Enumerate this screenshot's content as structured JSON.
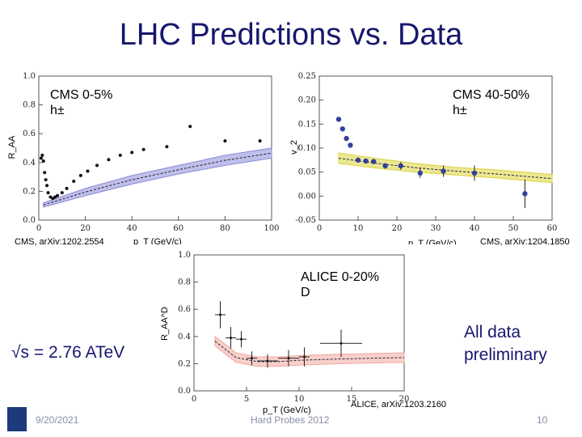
{
  "slide": {
    "title": "LHC Predictions vs. Data",
    "energy_note": "√s = 2.76 ATeV",
    "preliminary_note": "All data\npreliminary",
    "footer": {
      "date": "9/20/2021",
      "venue": "Hard Probes 2012",
      "page": "10"
    }
  },
  "panels": {
    "cms_raa": {
      "label": "CMS 0-5%\nh±",
      "reference": "CMS, arXiv:1202.2554",
      "y_axis_title": "R_AA",
      "x_axis_title": "p_T (GeV/c)"
    },
    "cms_v2": {
      "label": "CMS 40-50%\nh±",
      "reference": "CMS, arXiv:1204.1850",
      "y_axis_title": "v_2",
      "x_axis_title": "p_T (GeV/c)"
    },
    "alice_raa": {
      "label": "ALICE 0-20%\nD",
      "reference": "ALICE, arXiv:1203.2160",
      "y_axis_title": "R_AA^D",
      "x_axis_title": "p_T (GeV/c)"
    }
  },
  "chart_data": [
    {
      "type": "scatter",
      "title": "CMS 0-5% h±",
      "xlabel": "p_T (GeV/c)",
      "ylabel": "R_AA",
      "xlim": [
        0,
        100
      ],
      "ylim": [
        0,
        1.0
      ],
      "xticks": [
        "0",
        "20",
        "40",
        "60",
        "80",
        "100"
      ],
      "yticks": [
        "0.0",
        "0.2",
        "0.4",
        "0.6",
        "0.8",
        "1.0"
      ],
      "x": [
        1,
        1.5,
        2,
        2.5,
        3,
        3.5,
        4,
        5,
        6,
        7,
        8,
        10,
        12,
        15,
        18,
        21,
        25,
        30,
        35,
        40,
        45,
        55,
        65,
        80,
        95
      ],
      "y": [
        0.43,
        0.45,
        0.41,
        0.33,
        0.28,
        0.24,
        0.19,
        0.16,
        0.15,
        0.16,
        0.17,
        0.19,
        0.22,
        0.27,
        0.31,
        0.34,
        0.38,
        0.42,
        0.45,
        0.47,
        0.49,
        0.51,
        0.65,
        0.55,
        0.55
      ],
      "band": {
        "x": [
          2,
          20,
          40,
          60,
          80,
          100
        ],
        "low": [
          0.09,
          0.17,
          0.25,
          0.32,
          0.38,
          0.43
        ],
        "high": [
          0.12,
          0.22,
          0.31,
          0.38,
          0.45,
          0.5
        ]
      },
      "band_color": "#8a8ad8"
    },
    {
      "type": "scatter",
      "title": "CMS 40-50% h±",
      "xlabel": "p_T (GeV/c)",
      "ylabel": "v_2",
      "xlim": [
        0,
        60
      ],
      "ylim": [
        -0.05,
        0.25
      ],
      "xticks": [
        "0",
        "10",
        "20",
        "30",
        "40",
        "50",
        "60"
      ],
      "yticks": [
        "-0.05",
        "0.00",
        "0.05",
        "0.10",
        "0.15",
        "0.20",
        "0.25"
      ],
      "x": [
        5,
        6,
        7,
        8,
        10,
        12,
        14,
        17,
        21,
        26,
        32,
        40,
        53
      ],
      "y": [
        0.16,
        0.14,
        0.12,
        0.106,
        0.075,
        0.073,
        0.072,
        0.063,
        0.063,
        0.048,
        0.052,
        0.048,
        0.005
      ],
      "yerr": [
        0.003,
        0.003,
        0.003,
        0.003,
        0.005,
        0.005,
        0.005,
        0.006,
        0.008,
        0.01,
        0.012,
        0.016,
        0.03
      ],
      "band": {
        "x": [
          5,
          15,
          25,
          35,
          45,
          60
        ],
        "low": [
          0.068,
          0.058,
          0.05,
          0.044,
          0.038,
          0.028
        ],
        "high": [
          0.09,
          0.078,
          0.068,
          0.06,
          0.055,
          0.045
        ]
      },
      "band_color": "#dcd43a"
    },
    {
      "type": "scatter",
      "title": "ALICE 0-20% D",
      "xlabel": "p_T (GeV/c)",
      "ylabel": "R_AA^D",
      "xlim": [
        0,
        20
      ],
      "ylim": [
        0,
        1.0
      ],
      "xticks": [
        "0",
        "5",
        "10",
        "15",
        "20"
      ],
      "yticks": [
        "0.0",
        "0.2",
        "0.4",
        "0.6",
        "0.8",
        "1.0"
      ],
      "x": [
        2.5,
        3.5,
        4.5,
        5.5,
        7,
        9,
        10.5,
        14
      ],
      "y": [
        0.56,
        0.39,
        0.38,
        0.24,
        0.22,
        0.24,
        0.25,
        0.35
      ],
      "xerr": [
        0.5,
        0.5,
        0.5,
        0.5,
        1,
        1,
        0.5,
        2
      ],
      "yerr": [
        0.1,
        0.08,
        0.06,
        0.05,
        0.05,
        0.06,
        0.07,
        0.1
      ],
      "band": {
        "x": [
          2,
          4,
          6,
          8,
          10,
          14,
          20
        ],
        "low": [
          0.33,
          0.21,
          0.18,
          0.18,
          0.19,
          0.2,
          0.21
        ],
        "high": [
          0.4,
          0.28,
          0.25,
          0.25,
          0.26,
          0.27,
          0.28
        ]
      },
      "band_color": "#f2a7a0"
    }
  ]
}
